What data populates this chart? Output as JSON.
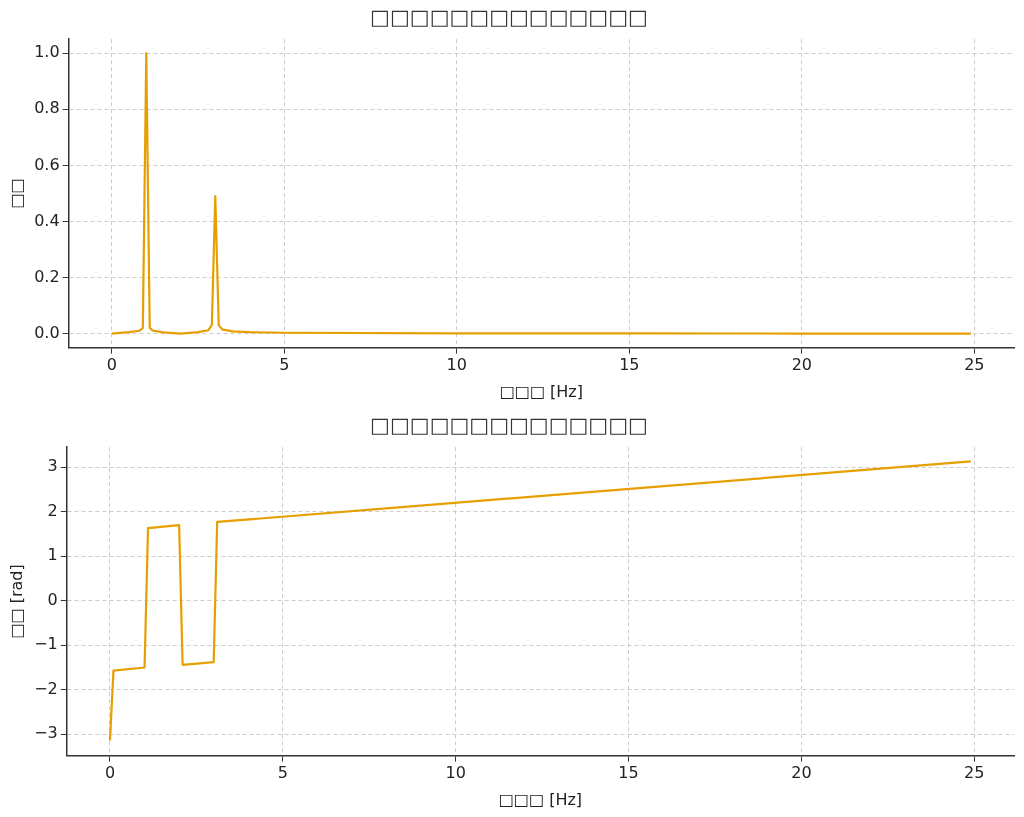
{
  "chart_data": [
    {
      "type": "line",
      "title": "□□□□□□□□□□□□□□",
      "xlabel": "□□□ [Hz]",
      "ylabel": "□□",
      "x": [
        0,
        0.5,
        0.8,
        0.9,
        1.0,
        1.1,
        1.2,
        1.5,
        2.0,
        2.5,
        2.8,
        2.9,
        3.0,
        3.1,
        3.2,
        3.5,
        4,
        5,
        10,
        15,
        20,
        24.9
      ],
      "series": [
        {
          "color": "#e69f00",
          "values": [
            0,
            0.005,
            0.01,
            0.02,
            1.0,
            0.02,
            0.01,
            0.004,
            0.0,
            0.005,
            0.012,
            0.03,
            0.49,
            0.03,
            0.015,
            0.008,
            0.005,
            0.003,
            0.001,
            0.001,
            0,
            0
          ]
        }
      ],
      "xlim": [
        -1.25,
        26.15
      ],
      "xticks": [
        0,
        5,
        10,
        15,
        20,
        25
      ],
      "ylim": [
        -0.05,
        1.05
      ],
      "yticks": [
        {
          "value": 0,
          "label": "0.0"
        },
        0.2,
        0.4,
        0.6,
        0.8,
        {
          "value": 1,
          "label": "1.0"
        }
      ],
      "grid": true,
      "legend": false,
      "line_style": "solid",
      "marker": "none"
    },
    {
      "type": "line",
      "title": "□□□□□□□□□□□□□□",
      "xlabel": "□□□ [Hz]",
      "ylabel": "□□ [rad]",
      "x": [
        0,
        0.1,
        1.0,
        1.1,
        2.0,
        2.1,
        3.0,
        3.1,
        24.9
      ],
      "series": [
        {
          "color": "#e69f00",
          "values": [
            -3.14,
            -1.57,
            -1.5,
            1.63,
            1.7,
            -1.44,
            -1.38,
            1.77,
            3.13
          ]
        }
      ],
      "xlim": [
        -1.25,
        26.15
      ],
      "xticks": [
        0,
        5,
        10,
        15,
        20,
        25
      ],
      "ylim": [
        -3.48,
        3.45
      ],
      "yticks": [
        {
          "value": -3,
          "label": "−3"
        },
        {
          "value": -2,
          "label": "−2"
        },
        {
          "value": -1,
          "label": "−1"
        },
        0,
        1,
        2,
        3
      ],
      "grid": true,
      "legend": false,
      "line_style": "solid",
      "marker": "none"
    }
  ]
}
